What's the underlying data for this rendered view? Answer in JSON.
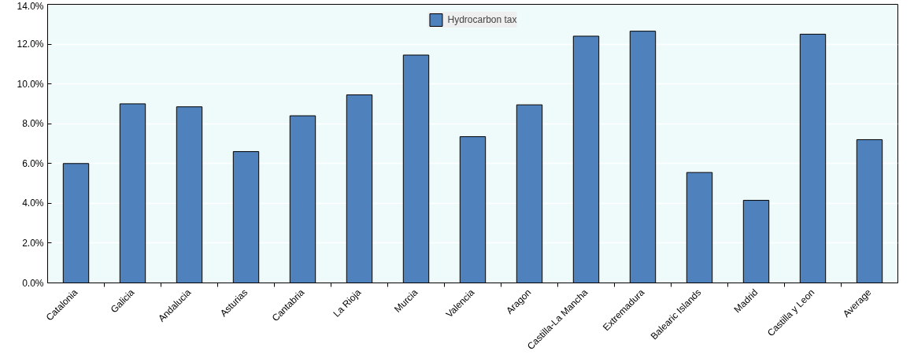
{
  "chart_data": {
    "type": "bar",
    "categories": [
      "Catalonia",
      "Galicia",
      "Andalucia",
      "Asturias",
      "Cantabria",
      "La Rioja",
      "Murcia",
      "Valencia",
      "Aragon",
      "Castilla-La Mancha",
      "Extremadura",
      "Balearic Islands",
      "Madrid",
      "Castilla y Leon",
      "Average"
    ],
    "series": [
      {
        "name": "Hydrocarbon tax",
        "color": "#4f81bd",
        "values": [
          6.0,
          9.0,
          8.85,
          6.6,
          8.4,
          9.45,
          11.45,
          7.35,
          8.95,
          12.4,
          12.65,
          5.55,
          4.15,
          12.5,
          7.2
        ]
      }
    ],
    "ylim": [
      0,
      14
    ],
    "yticks": [
      {
        "value": 0,
        "label": "0.0%"
      },
      {
        "value": 2,
        "label": "2.0%"
      },
      {
        "value": 4,
        "label": "4.0%"
      },
      {
        "value": 6,
        "label": "6.0%"
      },
      {
        "value": 8,
        "label": "8.0%"
      },
      {
        "value": 10,
        "label": "10.0%"
      },
      {
        "value": 12,
        "label": "12.0%"
      },
      {
        "value": 14,
        "label": "14.0%"
      }
    ],
    "grid": "y",
    "legend": "top"
  }
}
